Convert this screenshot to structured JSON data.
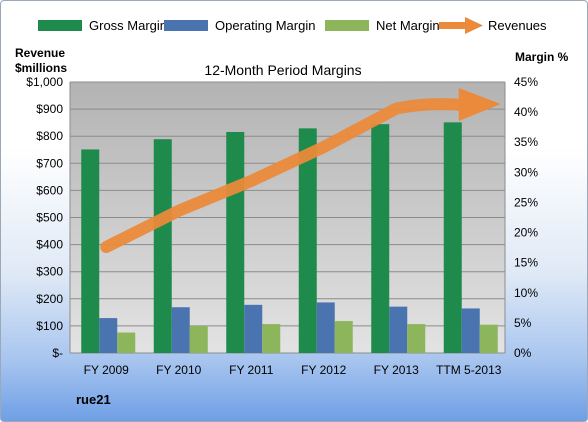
{
  "chart_data": {
    "type": "bar",
    "title": "12-Month Period Margins",
    "company": "rue21",
    "ylabel_left": [
      "Revenue",
      "$millions"
    ],
    "ylabel_right": "Margin %",
    "categories": [
      "FY 2009",
      "FY 2010",
      "FY 2011",
      "FY 2012",
      "FY 2013",
      "TTM 5-2013"
    ],
    "y_left": {
      "min": 0,
      "max": 1000,
      "step": 100,
      "tick_labels": [
        "$-",
        "$100",
        "$200",
        "$300",
        "$400",
        "$500",
        "$600",
        "$700",
        "$800",
        "$900",
        "$1,000"
      ]
    },
    "y_right": {
      "min": 0,
      "max": 45,
      "step": 5,
      "tick_labels": [
        "0%",
        "5%",
        "10%",
        "15%",
        "20%",
        "25%",
        "30%",
        "35%",
        "40%",
        "45%"
      ]
    },
    "series": [
      {
        "name": "Gross Margin",
        "kind": "bar",
        "axis": "right",
        "color": "#1e8a4c",
        "values": [
          33.8,
          35.5,
          36.7,
          37.3,
          38.0,
          38.3
        ]
      },
      {
        "name": "Operating Margin",
        "kind": "bar",
        "axis": "right",
        "color": "#4a74b0",
        "values": [
          5.8,
          7.6,
          8.0,
          8.4,
          7.7,
          7.4
        ]
      },
      {
        "name": "Net Margin",
        "kind": "bar",
        "axis": "right",
        "color": "#8db55b",
        "values": [
          3.4,
          4.5,
          4.8,
          5.3,
          4.8,
          4.7
        ]
      },
      {
        "name": "Revenues",
        "kind": "arrow-line",
        "axis": "left",
        "color": "#ea8a3a",
        "values": [
          391,
          525,
          635,
          760,
          902,
          915
        ]
      }
    ],
    "grid": true,
    "legend_position": "top"
  }
}
